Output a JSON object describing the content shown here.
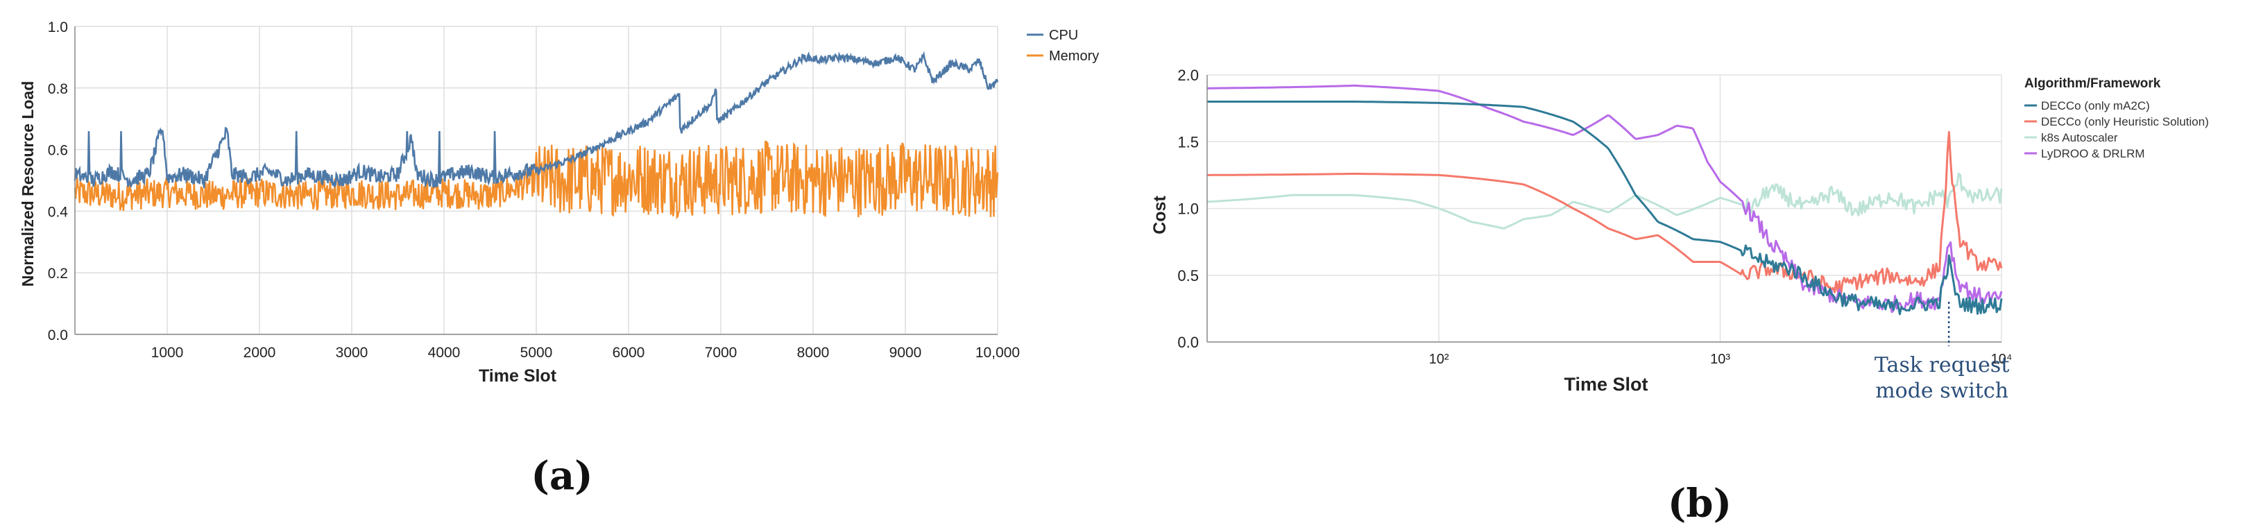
{
  "chart_data": [
    {
      "panel_label": "(a)",
      "type": "line",
      "xlabel": "Time Slot",
      "ylabel": "Normalized Resource Load",
      "xlim": [
        0,
        10000
      ],
      "ylim": [
        0,
        1.0
      ],
      "x_ticks": [
        1000,
        2000,
        3000,
        4000,
        5000,
        6000,
        7000,
        8000,
        9000,
        10000
      ],
      "x_tick_labels": [
        "1000",
        "2000",
        "3000",
        "4000",
        "5000",
        "6000",
        "7000",
        "8000",
        "9000",
        "10,000"
      ],
      "y_ticks": [
        0,
        0.2,
        0.4,
        0.6,
        0.8,
        1.0
      ],
      "y_tick_labels": [
        "0.0",
        "0.2",
        "0.4",
        "0.6",
        "0.8",
        "1.0"
      ],
      "grid": true,
      "legend_position": "top-right",
      "series": [
        {
          "name": "CPU",
          "color": "#4e79a7",
          "x": [
            0,
            200,
            400,
            600,
            800,
            950,
            1000,
            1200,
            1400,
            1650,
            1700,
            1900,
            2100,
            2300,
            2500,
            2700,
            2900,
            3100,
            3300,
            3500,
            3650,
            3700,
            3900,
            4100,
            4300,
            4500,
            4700,
            4900,
            5000,
            5200,
            5400,
            5600,
            5800,
            6000,
            6200,
            6400,
            6550,
            6560,
            6700,
            6900,
            6950,
            6960,
            7100,
            7300,
            7500,
            7700,
            7900,
            8100,
            8300,
            8500,
            8700,
            8900,
            9100,
            9200,
            9300,
            9500,
            9700,
            9800,
            9900,
            10000
          ],
          "values": [
            0.52,
            0.5,
            0.53,
            0.5,
            0.52,
            0.68,
            0.51,
            0.52,
            0.5,
            0.66,
            0.52,
            0.51,
            0.53,
            0.5,
            0.52,
            0.51,
            0.5,
            0.53,
            0.51,
            0.52,
            0.64,
            0.52,
            0.5,
            0.52,
            0.53,
            0.51,
            0.52,
            0.53,
            0.53,
            0.55,
            0.57,
            0.6,
            0.63,
            0.66,
            0.69,
            0.74,
            0.78,
            0.66,
            0.7,
            0.75,
            0.8,
            0.69,
            0.72,
            0.77,
            0.82,
            0.86,
            0.9,
            0.89,
            0.9,
            0.89,
            0.88,
            0.9,
            0.86,
            0.9,
            0.82,
            0.88,
            0.86,
            0.89,
            0.8,
            0.82
          ]
        },
        {
          "name": "Memory",
          "color": "#f28e2b",
          "x": [
            0,
            500,
            1000,
            1500,
            2000,
            2500,
            3000,
            3500,
            4000,
            4500,
            5000,
            5500,
            6000,
            6500,
            7000,
            7500,
            8000,
            8500,
            9000,
            9500,
            10000
          ],
          "values": [
            0.46,
            0.45,
            0.46,
            0.45,
            0.46,
            0.45,
            0.46,
            0.45,
            0.46,
            0.45,
            0.5,
            0.5,
            0.51,
            0.5,
            0.5,
            0.51,
            0.5,
            0.5,
            0.51,
            0.5,
            0.5
          ]
        }
      ]
    },
    {
      "panel_label": "(b)",
      "type": "line",
      "xlabel": "Time Slot",
      "ylabel": "Cost",
      "x_scale": "log",
      "xlim": [
        15,
        10000
      ],
      "ylim": [
        0,
        2.0
      ],
      "x_ticks": [
        100,
        1000,
        10000
      ],
      "x_tick_labels": [
        "10²",
        "10³",
        "10⁴"
      ],
      "y_ticks": [
        0,
        0.5,
        1.0,
        1.5,
        2.0
      ],
      "y_tick_labels": [
        "0.0",
        "0.5",
        "1.0",
        "1.5",
        "2.0"
      ],
      "grid": true,
      "legend_title": "Algorithm/Framework",
      "legend_position": "right",
      "annotation": {
        "text_line1": "Task request",
        "text_line2": "mode switch",
        "x": 6500
      },
      "series": [
        {
          "name": "DECCo (only mA2C)",
          "color": "#2e7a96",
          "x": [
            15,
            50,
            100,
            200,
            300,
            400,
            500,
            600,
            800,
            1000,
            1200,
            1500,
            1800,
            2000,
            2500,
            3000,
            3500,
            4000,
            5000,
            6000,
            6500,
            7000,
            8000,
            10000
          ],
          "values": [
            1.8,
            1.8,
            1.79,
            1.76,
            1.65,
            1.45,
            1.1,
            0.9,
            0.77,
            0.75,
            0.68,
            0.58,
            0.55,
            0.48,
            0.35,
            0.3,
            0.28,
            0.26,
            0.28,
            0.3,
            0.6,
            0.3,
            0.27,
            0.28
          ]
        },
        {
          "name": "DECCo (only Heuristic Solution)",
          "color": "#f4786a",
          "x": [
            15,
            50,
            100,
            200,
            300,
            400,
            500,
            600,
            700,
            800,
            1000,
            1200,
            1500,
            2000,
            2500,
            3000,
            4000,
            5000,
            6000,
            6400,
            6500,
            6700,
            7000,
            8000,
            10000
          ],
          "values": [
            1.25,
            1.26,
            1.25,
            1.18,
            1.0,
            0.85,
            0.77,
            0.8,
            0.7,
            0.6,
            0.6,
            0.5,
            0.55,
            0.5,
            0.4,
            0.45,
            0.5,
            0.45,
            0.55,
            1.3,
            1.55,
            1.2,
            0.8,
            0.6,
            0.55
          ]
        },
        {
          "name": "k8s Autoscaler",
          "color": "#bde3d6",
          "x": [
            15,
            30,
            50,
            80,
            100,
            130,
            170,
            200,
            250,
            300,
            400,
            500,
            700,
            1000,
            1300,
            1500,
            2000,
            2500,
            3000,
            4000,
            5000,
            6000,
            6500,
            7000,
            8000,
            10000
          ],
          "values": [
            1.05,
            1.1,
            1.1,
            1.06,
            1.0,
            0.9,
            0.85,
            0.92,
            0.95,
            1.05,
            0.97,
            1.1,
            0.95,
            1.08,
            1.0,
            1.15,
            1.0,
            1.12,
            0.98,
            1.1,
            1.0,
            1.12,
            1.05,
            1.22,
            1.08,
            1.1
          ]
        },
        {
          "name": "LyDROO & DRLRM",
          "color": "#b86ae8",
          "x": [
            15,
            50,
            100,
            150,
            200,
            250,
            300,
            400,
            500,
            600,
            700,
            800,
            900,
            1000,
            1200,
            1500,
            2000,
            2500,
            3000,
            4000,
            5000,
            6000,
            6500,
            7000,
            8000,
            10000
          ],
          "values": [
            1.9,
            1.92,
            1.88,
            1.75,
            1.65,
            1.6,
            1.55,
            1.7,
            1.52,
            1.55,
            1.62,
            1.6,
            1.35,
            1.2,
            1.05,
            0.75,
            0.42,
            0.35,
            0.3,
            0.28,
            0.32,
            0.3,
            0.78,
            0.45,
            0.35,
            0.32
          ]
        }
      ]
    }
  ]
}
